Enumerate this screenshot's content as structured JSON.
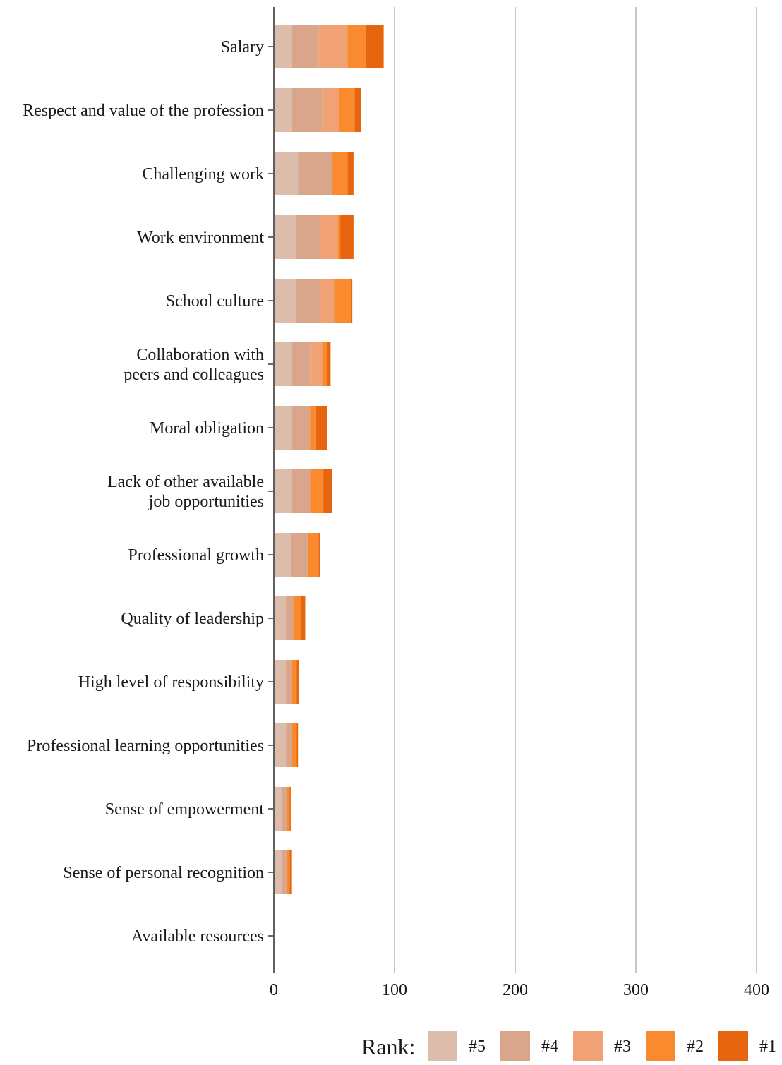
{
  "chart_data": {
    "type": "bar",
    "orientation": "horizontal",
    "stacked": true,
    "categories": [
      "Salary",
      "Respect and value of the profession",
      "Challenging work",
      "Work environment",
      "School culture",
      "Collaboration with peers and colleagues",
      "Moral obligation",
      "Lack of other available job opportunities",
      "Professional growth",
      "Quality of leadership",
      "High level of responsibility",
      "Professional learning opportunities",
      "Sense of empowerment",
      "Sense of personal recognition",
      "Available resources"
    ],
    "series": [
      {
        "name": "#5",
        "color": "#dcbcaa",
        "values": [
          15,
          15,
          20,
          18,
          18,
          15,
          15,
          15,
          14,
          10,
          10,
          10,
          7,
          7,
          0
        ]
      },
      {
        "name": "#4",
        "color": "#d9a58b",
        "values": [
          22,
          25,
          28,
          20,
          20,
          15,
          15,
          15,
          14,
          6,
          5,
          5,
          4,
          4,
          0
        ]
      },
      {
        "name": "#3",
        "color": "#f0a276",
        "values": [
          24,
          14,
          0,
          15,
          12,
          10,
          0,
          0,
          0,
          0,
          0,
          0,
          0,
          0,
          0
        ]
      },
      {
        "name": "#2",
        "color": "#f98b2e",
        "values": [
          15,
          13,
          13,
          2,
          14,
          4,
          5,
          11,
          9,
          6,
          4,
          4,
          2,
          2,
          0
        ]
      },
      {
        "name": "#1",
        "color": "#e8650f",
        "values": [
          15,
          5,
          5,
          11,
          1,
          3,
          9,
          7,
          1,
          4,
          2,
          1,
          1,
          2,
          0
        ]
      }
    ],
    "xlim": [
      0,
      400
    ],
    "x_ticks": [
      "0",
      "100",
      "200",
      "300",
      "400"
    ],
    "grid": "vertical major gridlines",
    "legend": {
      "title": "Rank:",
      "position": "bottom-right",
      "items": [
        "#5",
        "#4",
        "#3",
        "#2",
        "#1"
      ]
    },
    "xlabel": "",
    "ylabel": "",
    "title": ""
  }
}
